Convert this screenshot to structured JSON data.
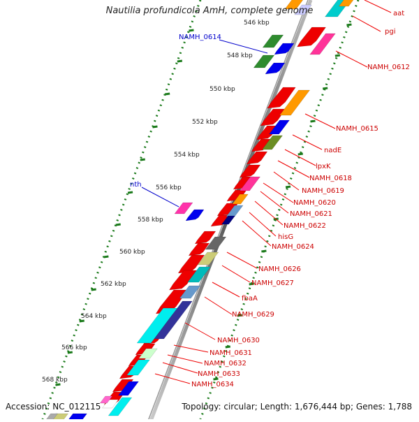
{
  "title": "Nautilia profundicola AmH, complete genome",
  "footer": {
    "accession": "Accession: NC_012115",
    "summary": "Topology: circular; Length: 1,676,444 bp; Genes: 1,788"
  },
  "ticks": [
    "546 kbp",
    "548 kbp",
    "550 kbp",
    "552 kbp",
    "554 kbp",
    "556 kbp",
    "558 kbp",
    "560 kbp",
    "562 kbp",
    "564 kbp",
    "566 kbp",
    "568 kbp"
  ],
  "left_labels": [
    "NAMH_0614",
    "nth"
  ],
  "right_labels": [
    "aat",
    "pgi",
    "NAMH_0612",
    "NAMH_0615",
    "nadE",
    "lpxK",
    "NAMH_0618",
    "NAMH_0619",
    "NAMH_0620",
    "NAMH_0621",
    "NAMH_0622",
    "hisG",
    "NAMH_0624",
    "NAMH_0626",
    "NAMH_0627",
    "fbaA",
    "NAMH_0629",
    "NAMH_0630",
    "NAMH_0631",
    "NAMH_0632",
    "NAMH_0633",
    "NAMH_0634"
  ],
  "colors": {
    "gene_red": "#ee0000",
    "label_red": "#cc0000",
    "label_blue": "#0000cc",
    "tick_green": "#1a7a1a",
    "backbone": "#777777"
  }
}
